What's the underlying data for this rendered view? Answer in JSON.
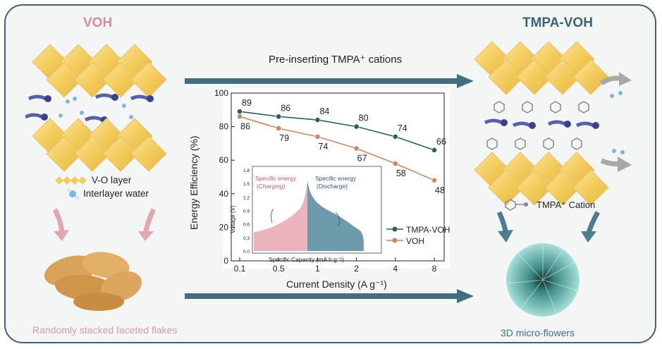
{
  "titles": {
    "left": "VOH",
    "right": "TMPA-VOH"
  },
  "top_arrow_label": "Pre-inserting TMPA⁺ cations",
  "legend_left": {
    "vo_layer": "V-O layer",
    "interlayer_water": "Interlayer water"
  },
  "tmpa_cation_label": "TMPA⁺ Cation",
  "captions": {
    "left": "Randomly stacked faceted flakes",
    "right": "3D  micro-flowers"
  },
  "colors": {
    "tmpa": "#2f5f60",
    "voh": "#c98a63",
    "arrow": "#426e80",
    "pink": "#e3a6b0",
    "charge_fill": "#eab3be",
    "discharge_fill": "#6d9bac"
  },
  "chart_data": {
    "type": "line",
    "xlabel": "Current Density (A g⁻¹)",
    "ylabel": "Energy Efficiency (%)",
    "x": [
      "0.1",
      "0.5",
      "1",
      "2",
      "4",
      "8"
    ],
    "ylim": [
      0,
      100
    ],
    "yticks": [
      "0",
      "20",
      "40",
      "60",
      "80",
      "100"
    ],
    "series": [
      {
        "name": "TMPA-VOH",
        "values": [
          89,
          86,
          84,
          80,
          74,
          66
        ],
        "color": "#2f5f60"
      },
      {
        "name": "VOH",
        "values": [
          86,
          79,
          74,
          67,
          58,
          48
        ],
        "color": "#c98a63"
      }
    ],
    "inset": {
      "xlabel": "Specific Capacity (mA h g⁻¹)",
      "ylabel": "Voltage (V)",
      "yticks": [
        "0.0",
        "0.3",
        "0.6",
        "0.9",
        "1.2",
        "1.5",
        "1.8"
      ],
      "ylim": [
        0,
        1.8
      ],
      "labels": {
        "charge_1": "Specific energy",
        "charge_2": "(Charging)",
        "discharge_1": "Specific energy",
        "discharge_2": "(Discharge)"
      }
    }
  }
}
